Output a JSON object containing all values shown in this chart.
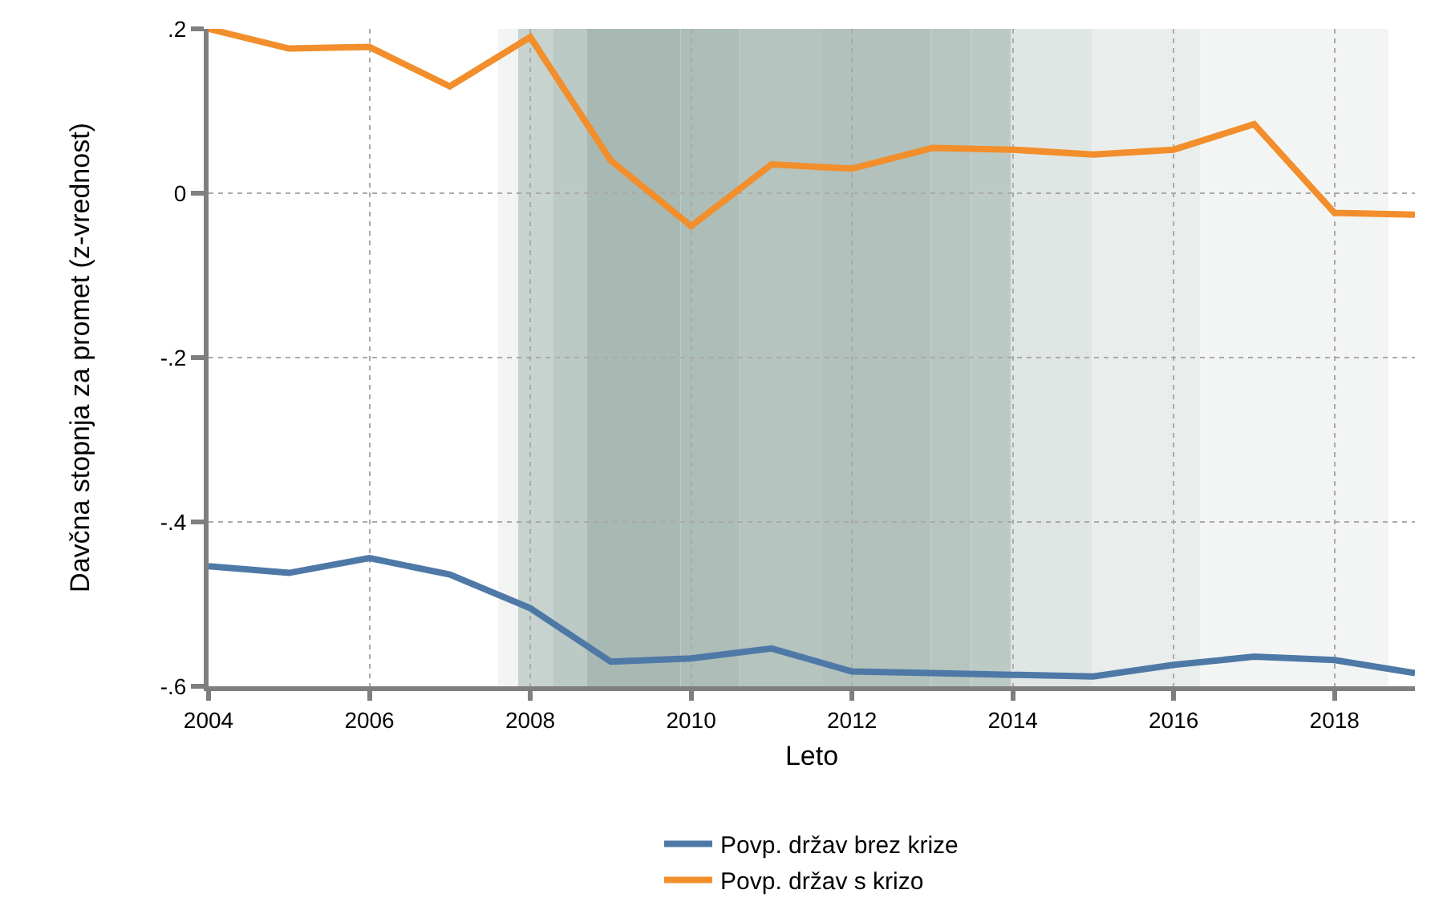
{
  "chart_data": {
    "type": "line",
    "xlabel": "Leto",
    "ylabel": "Davčna stopnja za promet (z-vrednost)",
    "x": [
      2004,
      2005,
      2006,
      2007,
      2008,
      2009,
      2010,
      2011,
      2012,
      2013,
      2014,
      2015,
      2016,
      2017,
      2018,
      2019
    ],
    "series": [
      {
        "name": "Povp. držav brez krize",
        "color": "#4e79a7",
        "values": [
          -0.454,
          -0.462,
          -0.444,
          -0.464,
          -0.505,
          -0.57,
          -0.566,
          -0.554,
          -0.582,
          -0.584,
          -0.586,
          -0.588,
          -0.574,
          -0.564,
          -0.568,
          -0.584
        ]
      },
      {
        "name": "Povp. držav s krizo",
        "color": "#f28e2b",
        "values": [
          0.2,
          0.176,
          0.178,
          0.13,
          0.19,
          0.04,
          -0.04,
          0.035,
          0.03,
          0.055,
          0.053,
          0.047,
          0.053,
          0.084,
          -0.024,
          -0.026
        ]
      }
    ],
    "xlim": [
      2004,
      2019
    ],
    "xticks": [
      2004,
      2006,
      2008,
      2010,
      2012,
      2014,
      2016,
      2018
    ],
    "ylim": [
      -0.6,
      0.2
    ],
    "yticks": [
      {
        "value": 0.2,
        "label": ".2"
      },
      0,
      {
        "value": -0.2,
        "label": "-.2"
      },
      {
        "value": -0.4,
        "label": "-.4"
      },
      {
        "value": -0.6,
        "label": "-.6"
      }
    ],
    "bands": [
      {
        "axis": "x",
        "from": 2007.6,
        "to": 2007.85,
        "color": "#f2f4f3"
      },
      {
        "axis": "x",
        "from": 2007.85,
        "to": 2008.28,
        "color": "#c8d3cf"
      },
      {
        "axis": "x",
        "from": 2008.28,
        "to": 2008.7,
        "color": "#bccac5"
      },
      {
        "axis": "x",
        "from": 2008.7,
        "to": 2009.87,
        "color": "#a8b8b2"
      },
      {
        "axis": "x",
        "from": 2009.87,
        "to": 2010.6,
        "color": "#adbdb7"
      },
      {
        "axis": "x",
        "from": 2010.6,
        "to": 2011.63,
        "color": "#b5c4bf"
      },
      {
        "axis": "x",
        "from": 2011.63,
        "to": 2012.98,
        "color": "#b2c1bb"
      },
      {
        "axis": "x",
        "from": 2012.98,
        "to": 2013.48,
        "color": "#b6c5bf"
      },
      {
        "axis": "x",
        "from": 2013.48,
        "to": 2013.98,
        "color": "#bccac5"
      },
      {
        "axis": "x",
        "from": 2013.98,
        "to": 2014.98,
        "color": "#e0e6e4"
      },
      {
        "axis": "x",
        "from": 2014.98,
        "to": 2016.33,
        "color": "#e9eeec"
      },
      {
        "axis": "x",
        "from": 2016.33,
        "to": 2018.67,
        "color": "#f3f5f4"
      }
    ],
    "grid": true,
    "legend": "bottom",
    "marker": "none",
    "line_style": "solid"
  }
}
